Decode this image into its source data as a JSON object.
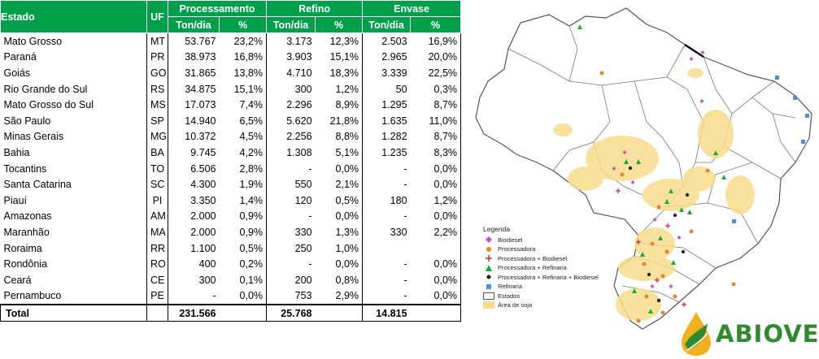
{
  "table": {
    "headers": {
      "estado": "Estado",
      "uf": "UF",
      "processamento": "Processamento",
      "refino": "Refino",
      "envase": "Envase",
      "ton_dia": "Ton/dia",
      "pct": "%"
    },
    "rows": [
      {
        "estado": "Mato Grosso",
        "uf": "MT",
        "proc_ton": "53.767",
        "proc_pct": "23,2%",
        "ref_ton": "3.173",
        "ref_pct": "12,3%",
        "env_ton": "2.503",
        "env_pct": "16,9%"
      },
      {
        "estado": "Paraná",
        "uf": "PR",
        "proc_ton": "38.973",
        "proc_pct": "16,8%",
        "ref_ton": "3.903",
        "ref_pct": "15,1%",
        "env_ton": "2.965",
        "env_pct": "20,0%"
      },
      {
        "estado": "Goiás",
        "uf": "GO",
        "proc_ton": "31.865",
        "proc_pct": "13,8%",
        "ref_ton": "4.710",
        "ref_pct": "18,3%",
        "env_ton": "3.339",
        "env_pct": "22,5%"
      },
      {
        "estado": "Rio Grande do Sul",
        "uf": "RS",
        "proc_ton": "34.875",
        "proc_pct": "15,1%",
        "ref_ton": "300",
        "ref_pct": "1,2%",
        "env_ton": "50",
        "env_pct": "0,3%"
      },
      {
        "estado": "Mato Grosso do Sul",
        "uf": "MS",
        "proc_ton": "17.073",
        "proc_pct": "7,4%",
        "ref_ton": "2.296",
        "ref_pct": "8,9%",
        "env_ton": "1.295",
        "env_pct": "8,7%"
      },
      {
        "estado": "São Paulo",
        "uf": "SP",
        "proc_ton": "14.940",
        "proc_pct": "6,5%",
        "ref_ton": "5.620",
        "ref_pct": "21,8%",
        "env_ton": "1.635",
        "env_pct": "11,0%"
      },
      {
        "estado": "Minas Gerais",
        "uf": "MG",
        "proc_ton": "10.372",
        "proc_pct": "4,5%",
        "ref_ton": "2.256",
        "ref_pct": "8,8%",
        "env_ton": "1.282",
        "env_pct": "8,7%"
      },
      {
        "estado": "Bahia",
        "uf": "BA",
        "proc_ton": "9.745",
        "proc_pct": "4,2%",
        "ref_ton": "1.308",
        "ref_pct": "5,1%",
        "env_ton": "1.235",
        "env_pct": "8,3%"
      },
      {
        "estado": "Tocantins",
        "uf": "TO",
        "proc_ton": "6.506",
        "proc_pct": "2,8%",
        "ref_ton": "-",
        "ref_pct": "0,0%",
        "env_ton": "-",
        "env_pct": "0,0%"
      },
      {
        "estado": "Santa Catarina",
        "uf": "SC",
        "proc_ton": "4.300",
        "proc_pct": "1,9%",
        "ref_ton": "550",
        "ref_pct": "2,1%",
        "env_ton": "-",
        "env_pct": "0,0%"
      },
      {
        "estado": "Piauí",
        "uf": "PI",
        "proc_ton": "3.350",
        "proc_pct": "1,4%",
        "ref_ton": "120",
        "ref_pct": "0,5%",
        "env_ton": "180",
        "env_pct": "1,2%"
      },
      {
        "estado": "Amazonas",
        "uf": "AM",
        "proc_ton": "2.000",
        "proc_pct": "0,9%",
        "ref_ton": "-",
        "ref_pct": "0,0%",
        "env_ton": "-",
        "env_pct": "0,0%"
      },
      {
        "estado": "Maranhão",
        "uf": "MA",
        "proc_ton": "2.000",
        "proc_pct": "0,9%",
        "ref_ton": "330",
        "ref_pct": "1,3%",
        "env_ton": "330",
        "env_pct": "2,2%"
      },
      {
        "estado": "Roraima",
        "uf": "RR",
        "proc_ton": "1.100",
        "proc_pct": "0,5%",
        "ref_ton": "250",
        "ref_pct": "1,0%",
        "env_ton": "",
        "env_pct": ""
      },
      {
        "estado": "Rondônia",
        "uf": "RO",
        "proc_ton": "400",
        "proc_pct": "0,2%",
        "ref_ton": "-",
        "ref_pct": "0,0%",
        "env_ton": "-",
        "env_pct": "0,0%"
      },
      {
        "estado": "Ceará",
        "uf": "CE",
        "proc_ton": "300",
        "proc_pct": "0,1%",
        "ref_ton": "200",
        "ref_pct": "0,8%",
        "env_ton": "-",
        "env_pct": "0,0%"
      },
      {
        "estado": "Pernambuco",
        "uf": "PE",
        "proc_ton": "-",
        "proc_pct": "0,0%",
        "ref_ton": "753",
        "ref_pct": "2,9%",
        "env_ton": "-",
        "env_pct": "0,0%"
      }
    ],
    "total": {
      "label": "Total",
      "proc_ton": "231.566",
      "ref_ton": "25.768",
      "env_ton": "14.815"
    }
  },
  "legend": {
    "title": "Legenda",
    "items": [
      {
        "label": "Biodiesel",
        "symbol": "diamond",
        "color": "#d050c0"
      },
      {
        "label": "Processadora",
        "symbol": "circle",
        "color": "#e08a30"
      },
      {
        "label": "Processadora + Biodiesel",
        "symbol": "plus",
        "color": "#c0303a"
      },
      {
        "label": "Processadora + Refinaria",
        "symbol": "triangle",
        "color": "#1ea83a"
      },
      {
        "label": "Processadora + Refinaria + Biodiesel",
        "symbol": "dot",
        "color": "#222222"
      },
      {
        "label": "Refinaria",
        "symbol": "square",
        "color": "#4a90d9"
      },
      {
        "label": "Estados",
        "symbol": "outline",
        "color": "#555555"
      },
      {
        "label": "Área de soja",
        "symbol": "area",
        "color": "#f7dc8c"
      }
    ]
  },
  "logo": {
    "text": "ABIOVE",
    "color": "#2e8b2e",
    "drop_color": "#f0b020"
  }
}
